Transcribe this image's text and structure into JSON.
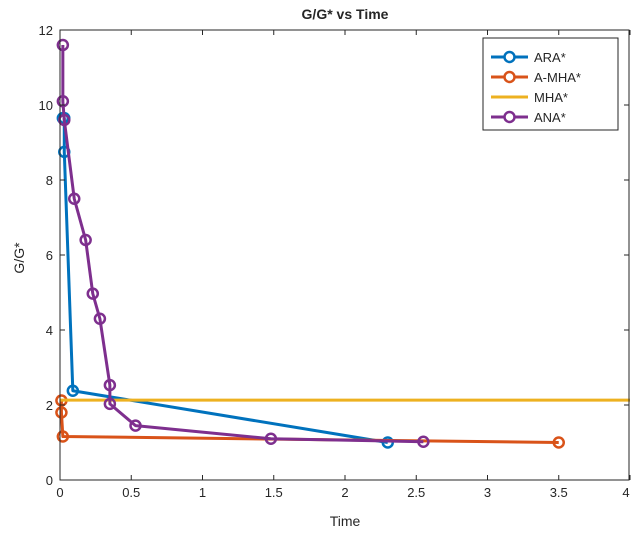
{
  "chart_data": {
    "type": "line",
    "title": "G/G* vs Time",
    "xlabel": "Time",
    "ylabel": "G/G*",
    "xlim": [
      0,
      4
    ],
    "ylim": [
      0,
      12
    ],
    "xticks": [
      0,
      0.5,
      1,
      1.5,
      2,
      2.5,
      3,
      3.5,
      4
    ],
    "xtick_labels": [
      "0",
      "0.5",
      "1",
      "1.5",
      "2",
      "2.5",
      "3",
      "3.5",
      "4"
    ],
    "yticks": [
      0,
      2,
      4,
      6,
      8,
      10,
      12
    ],
    "ytick_labels": [
      "0",
      "2",
      "4",
      "6",
      "8",
      "10",
      "12"
    ],
    "grid": false,
    "legend_position": "top-right",
    "series": [
      {
        "name": "ARA*",
        "color": "#0072BD",
        "markers": true,
        "x": [
          0.02,
          0.03,
          0.03,
          0.09,
          2.3
        ],
        "y": [
          9.65,
          9.65,
          8.75,
          2.38,
          1.0
        ]
      },
      {
        "name": "A-MHA*",
        "color": "#D95319",
        "markers": true,
        "x": [
          0.01,
          0.01,
          0.02,
          3.5
        ],
        "y": [
          2.12,
          1.8,
          1.16,
          1.0
        ]
      },
      {
        "name": "MHA*",
        "color": "#EDB120",
        "markers": false,
        "x": [
          0,
          4
        ],
        "y": [
          2.13,
          2.13
        ]
      },
      {
        "name": "ANA*",
        "color": "#7E2F8E",
        "markers": true,
        "x": [
          0.02,
          0.02,
          0.03,
          0.1,
          0.18,
          0.23,
          0.28,
          0.35,
          0.35,
          0.53,
          1.48,
          2.55
        ],
        "y": [
          11.6,
          10.1,
          9.6,
          7.5,
          6.4,
          4.97,
          4.3,
          2.53,
          2.03,
          1.45,
          1.1,
          1.02
        ]
      }
    ]
  }
}
